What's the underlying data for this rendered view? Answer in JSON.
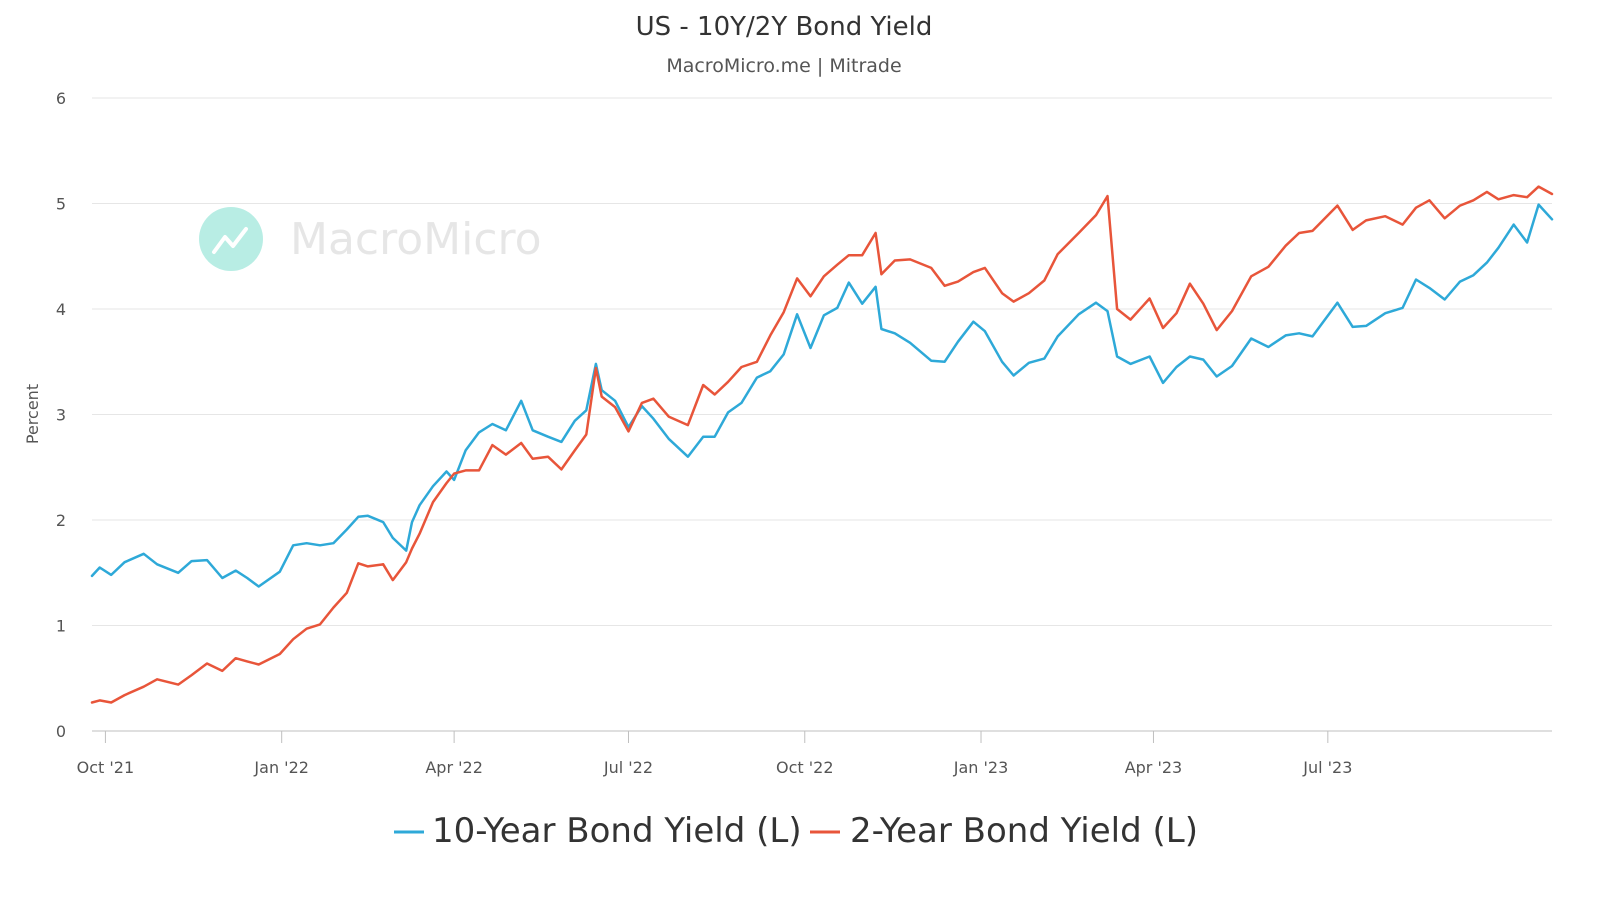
{
  "chart_data": {
    "type": "line",
    "title": "US - 10Y/2Y Bond Yield",
    "subtitle": "MacroMicro.me | Mitrade",
    "watermark": "MacroMicro",
    "ylabel": "Percent",
    "ylim": [
      0,
      6
    ],
    "yticks": [
      "0",
      "1",
      "2",
      "3",
      "4",
      "5",
      "6"
    ],
    "xlim": [
      "2021-09-24",
      "2023-10-26"
    ],
    "xticks": [
      {
        "label": "Oct '21",
        "date": "2021-10-01"
      },
      {
        "label": "Jan '22",
        "date": "2022-01-01"
      },
      {
        "label": "Apr '22",
        "date": "2022-04-01"
      },
      {
        "label": "Jul '22",
        "date": "2022-07-01"
      },
      {
        "label": "Oct '22",
        "date": "2022-10-01"
      },
      {
        "label": "Jan '23",
        "date": "2023-01-01"
      },
      {
        "label": "Apr '23",
        "date": "2023-04-01"
      },
      {
        "label": "Jul '23",
        "date": "2023-07-01"
      }
    ],
    "grid": true,
    "legend_position": "bottom",
    "colors": {
      "10y": "#2ea9d8",
      "2y": "#e8553a"
    },
    "series": [
      {
        "name": "10-Year Bond Yield (L)",
        "color": "#2ea9d8",
        "points": [
          [
            "2021-09-24",
            1.47
          ],
          [
            "2021-09-28",
            1.55
          ],
          [
            "2021-10-04",
            1.48
          ],
          [
            "2021-10-11",
            1.6
          ],
          [
            "2021-10-21",
            1.68
          ],
          [
            "2021-10-28",
            1.58
          ],
          [
            "2021-11-08",
            1.5
          ],
          [
            "2021-11-15",
            1.61
          ],
          [
            "2021-11-23",
            1.62
          ],
          [
            "2021-12-01",
            1.45
          ],
          [
            "2021-12-08",
            1.52
          ],
          [
            "2021-12-14",
            1.45
          ],
          [
            "2021-12-20",
            1.37
          ],
          [
            "2021-12-31",
            1.51
          ],
          [
            "2022-01-07",
            1.76
          ],
          [
            "2022-01-14",
            1.78
          ],
          [
            "2022-01-21",
            1.76
          ],
          [
            "2022-01-28",
            1.78
          ],
          [
            "2022-02-04",
            1.91
          ],
          [
            "2022-02-10",
            2.03
          ],
          [
            "2022-02-15",
            2.04
          ],
          [
            "2022-02-23",
            1.98
          ],
          [
            "2022-02-28",
            1.83
          ],
          [
            "2022-03-07",
            1.71
          ],
          [
            "2022-03-10",
            1.98
          ],
          [
            "2022-03-14",
            2.14
          ],
          [
            "2022-03-21",
            2.32
          ],
          [
            "2022-03-28",
            2.46
          ],
          [
            "2022-04-01",
            2.38
          ],
          [
            "2022-04-07",
            2.66
          ],
          [
            "2022-04-14",
            2.83
          ],
          [
            "2022-04-21",
            2.91
          ],
          [
            "2022-04-28",
            2.85
          ],
          [
            "2022-05-06",
            3.13
          ],
          [
            "2022-05-12",
            2.85
          ],
          [
            "2022-05-20",
            2.79
          ],
          [
            "2022-05-27",
            2.74
          ],
          [
            "2022-06-03",
            2.94
          ],
          [
            "2022-06-09",
            3.04
          ],
          [
            "2022-06-14",
            3.48
          ],
          [
            "2022-06-17",
            3.23
          ],
          [
            "2022-06-24",
            3.13
          ],
          [
            "2022-07-01",
            2.88
          ],
          [
            "2022-07-08",
            3.08
          ],
          [
            "2022-07-14",
            2.96
          ],
          [
            "2022-07-22",
            2.77
          ],
          [
            "2022-08-01",
            2.6
          ],
          [
            "2022-08-09",
            2.79
          ],
          [
            "2022-08-15",
            2.79
          ],
          [
            "2022-08-22",
            3.02
          ],
          [
            "2022-08-29",
            3.11
          ],
          [
            "2022-09-06",
            3.35
          ],
          [
            "2022-09-13",
            3.41
          ],
          [
            "2022-09-20",
            3.57
          ],
          [
            "2022-09-27",
            3.95
          ],
          [
            "2022-10-04",
            3.63
          ],
          [
            "2022-10-11",
            3.94
          ],
          [
            "2022-10-18",
            4.01
          ],
          [
            "2022-10-24",
            4.25
          ],
          [
            "2022-10-31",
            4.05
          ],
          [
            "2022-11-07",
            4.21
          ],
          [
            "2022-11-10",
            3.81
          ],
          [
            "2022-11-17",
            3.77
          ],
          [
            "2022-11-25",
            3.68
          ],
          [
            "2022-12-06",
            3.51
          ],
          [
            "2022-12-13",
            3.5
          ],
          [
            "2022-12-20",
            3.69
          ],
          [
            "2022-12-28",
            3.88
          ],
          [
            "2023-01-03",
            3.79
          ],
          [
            "2023-01-12",
            3.5
          ],
          [
            "2023-01-18",
            3.37
          ],
          [
            "2023-01-26",
            3.49
          ],
          [
            "2023-02-03",
            3.53
          ],
          [
            "2023-02-10",
            3.74
          ],
          [
            "2023-02-21",
            3.95
          ],
          [
            "2023-03-02",
            4.06
          ],
          [
            "2023-03-08",
            3.98
          ],
          [
            "2023-03-13",
            3.55
          ],
          [
            "2023-03-20",
            3.48
          ],
          [
            "2023-03-30",
            3.55
          ],
          [
            "2023-04-06",
            3.3
          ],
          [
            "2023-04-13",
            3.45
          ],
          [
            "2023-04-20",
            3.55
          ],
          [
            "2023-04-27",
            3.52
          ],
          [
            "2023-05-04",
            3.36
          ],
          [
            "2023-05-12",
            3.46
          ],
          [
            "2023-05-22",
            3.72
          ],
          [
            "2023-05-31",
            3.64
          ],
          [
            "2023-06-09",
            3.75
          ],
          [
            "2023-06-16",
            3.77
          ],
          [
            "2023-06-23",
            3.74
          ],
          [
            "2023-07-06",
            4.06
          ],
          [
            "2023-07-14",
            3.83
          ],
          [
            "2023-07-21",
            3.84
          ],
          [
            "2023-07-31",
            3.96
          ],
          [
            "2023-08-09",
            4.01
          ],
          [
            "2023-08-16",
            4.28
          ],
          [
            "2023-08-23",
            4.2
          ],
          [
            "2023-08-31",
            4.09
          ],
          [
            "2023-09-08",
            4.26
          ],
          [
            "2023-09-15",
            4.32
          ],
          [
            "2023-09-22",
            4.44
          ],
          [
            "2023-09-28",
            4.58
          ],
          [
            "2023-10-06",
            4.8
          ],
          [
            "2023-10-13",
            4.63
          ],
          [
            "2023-10-19",
            4.99
          ],
          [
            "2023-10-26",
            4.85
          ]
        ]
      },
      {
        "name": "2-Year Bond Yield (L)",
        "color": "#e8553a",
        "points": [
          [
            "2021-09-24",
            0.27
          ],
          [
            "2021-09-28",
            0.29
          ],
          [
            "2021-10-04",
            0.27
          ],
          [
            "2021-10-11",
            0.34
          ],
          [
            "2021-10-21",
            0.42
          ],
          [
            "2021-10-28",
            0.49
          ],
          [
            "2021-11-08",
            0.44
          ],
          [
            "2021-11-15",
            0.53
          ],
          [
            "2021-11-23",
            0.64
          ],
          [
            "2021-12-01",
            0.57
          ],
          [
            "2021-12-08",
            0.69
          ],
          [
            "2021-12-14",
            0.66
          ],
          [
            "2021-12-20",
            0.63
          ],
          [
            "2021-12-31",
            0.73
          ],
          [
            "2022-01-07",
            0.87
          ],
          [
            "2022-01-14",
            0.97
          ],
          [
            "2022-01-21",
            1.01
          ],
          [
            "2022-01-28",
            1.17
          ],
          [
            "2022-02-04",
            1.31
          ],
          [
            "2022-02-10",
            1.59
          ],
          [
            "2022-02-15",
            1.56
          ],
          [
            "2022-02-23",
            1.58
          ],
          [
            "2022-02-28",
            1.43
          ],
          [
            "2022-03-07",
            1.6
          ],
          [
            "2022-03-10",
            1.73
          ],
          [
            "2022-03-14",
            1.87
          ],
          [
            "2022-03-21",
            2.17
          ],
          [
            "2022-03-28",
            2.35
          ],
          [
            "2022-04-01",
            2.44
          ],
          [
            "2022-04-07",
            2.47
          ],
          [
            "2022-04-14",
            2.47
          ],
          [
            "2022-04-21",
            2.71
          ],
          [
            "2022-04-28",
            2.62
          ],
          [
            "2022-05-06",
            2.73
          ],
          [
            "2022-05-12",
            2.58
          ],
          [
            "2022-05-20",
            2.6
          ],
          [
            "2022-05-27",
            2.48
          ],
          [
            "2022-06-03",
            2.66
          ],
          [
            "2022-06-09",
            2.81
          ],
          [
            "2022-06-14",
            3.44
          ],
          [
            "2022-06-17",
            3.17
          ],
          [
            "2022-06-24",
            3.07
          ],
          [
            "2022-07-01",
            2.84
          ],
          [
            "2022-07-08",
            3.11
          ],
          [
            "2022-07-14",
            3.15
          ],
          [
            "2022-07-22",
            2.98
          ],
          [
            "2022-08-01",
            2.9
          ],
          [
            "2022-08-09",
            3.28
          ],
          [
            "2022-08-15",
            3.19
          ],
          [
            "2022-08-22",
            3.31
          ],
          [
            "2022-08-29",
            3.45
          ],
          [
            "2022-09-06",
            3.5
          ],
          [
            "2022-09-13",
            3.75
          ],
          [
            "2022-09-20",
            3.97
          ],
          [
            "2022-09-27",
            4.29
          ],
          [
            "2022-10-04",
            4.12
          ],
          [
            "2022-10-11",
            4.31
          ],
          [
            "2022-10-18",
            4.42
          ],
          [
            "2022-10-24",
            4.51
          ],
          [
            "2022-10-31",
            4.51
          ],
          [
            "2022-11-07",
            4.72
          ],
          [
            "2022-11-10",
            4.33
          ],
          [
            "2022-11-17",
            4.46
          ],
          [
            "2022-11-25",
            4.47
          ],
          [
            "2022-12-06",
            4.39
          ],
          [
            "2022-12-13",
            4.22
          ],
          [
            "2022-12-20",
            4.26
          ],
          [
            "2022-12-28",
            4.35
          ],
          [
            "2023-01-03",
            4.39
          ],
          [
            "2023-01-12",
            4.15
          ],
          [
            "2023-01-18",
            4.07
          ],
          [
            "2023-01-26",
            4.15
          ],
          [
            "2023-02-03",
            4.27
          ],
          [
            "2023-02-10",
            4.52
          ],
          [
            "2023-02-21",
            4.72
          ],
          [
            "2023-03-02",
            4.89
          ],
          [
            "2023-03-08",
            5.07
          ],
          [
            "2023-03-13",
            4.0
          ],
          [
            "2023-03-20",
            3.9
          ],
          [
            "2023-03-30",
            4.1
          ],
          [
            "2023-04-06",
            3.82
          ],
          [
            "2023-04-13",
            3.96
          ],
          [
            "2023-04-20",
            4.24
          ],
          [
            "2023-04-27",
            4.05
          ],
          [
            "2023-05-04",
            3.8
          ],
          [
            "2023-05-12",
            3.98
          ],
          [
            "2023-05-22",
            4.31
          ],
          [
            "2023-05-31",
            4.4
          ],
          [
            "2023-06-09",
            4.6
          ],
          [
            "2023-06-16",
            4.72
          ],
          [
            "2023-06-23",
            4.74
          ],
          [
            "2023-07-06",
            4.98
          ],
          [
            "2023-07-14",
            4.75
          ],
          [
            "2023-07-21",
            4.84
          ],
          [
            "2023-07-31",
            4.88
          ],
          [
            "2023-08-09",
            4.8
          ],
          [
            "2023-08-16",
            4.96
          ],
          [
            "2023-08-23",
            5.03
          ],
          [
            "2023-08-31",
            4.86
          ],
          [
            "2023-09-08",
            4.98
          ],
          [
            "2023-09-15",
            5.03
          ],
          [
            "2023-09-22",
            5.11
          ],
          [
            "2023-09-28",
            5.04
          ],
          [
            "2023-10-06",
            5.08
          ],
          [
            "2023-10-13",
            5.06
          ],
          [
            "2023-10-19",
            5.16
          ],
          [
            "2023-10-26",
            5.09
          ]
        ]
      }
    ]
  }
}
